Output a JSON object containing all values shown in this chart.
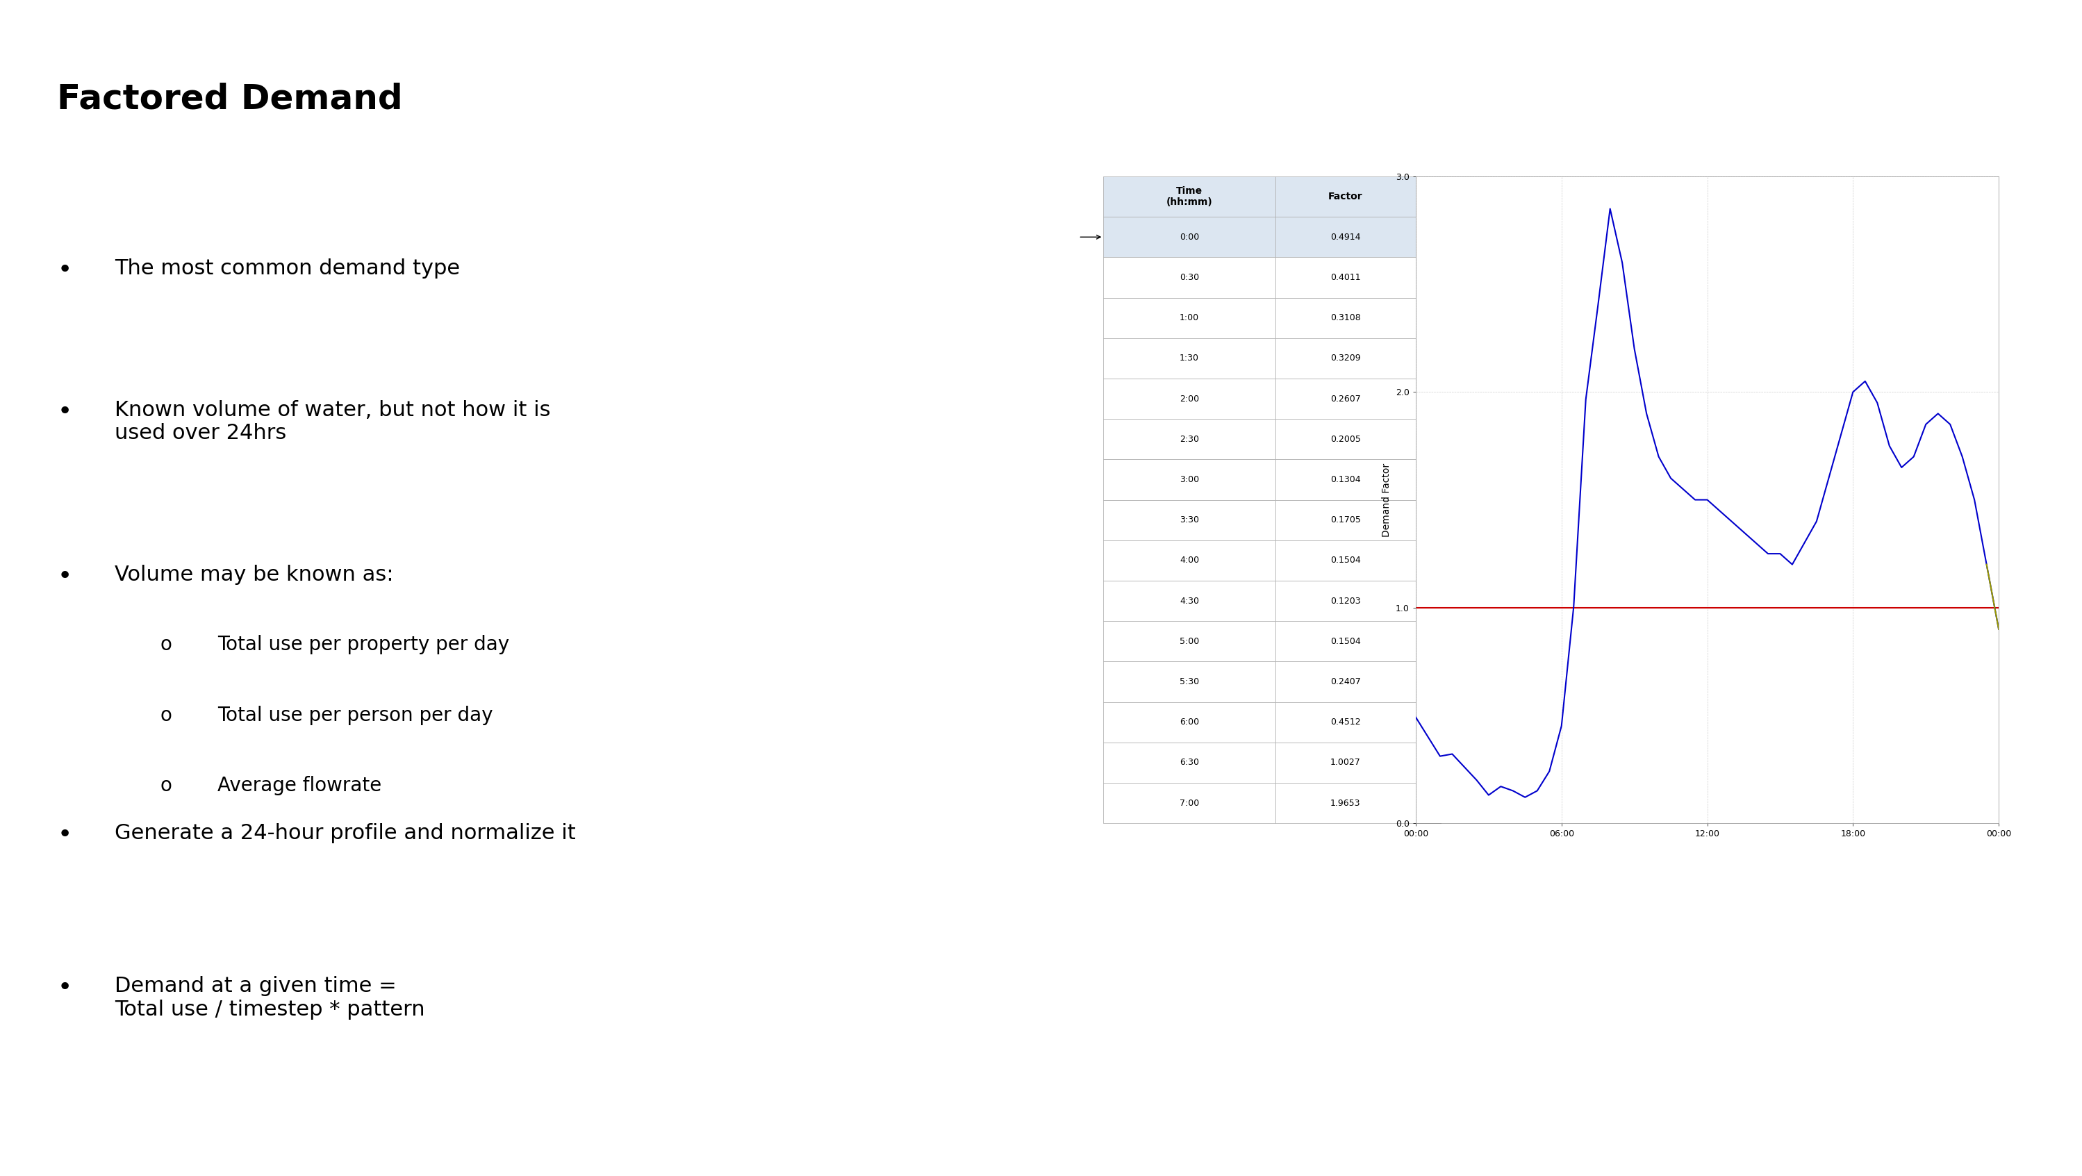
{
  "title": "Factored Demand",
  "bullets": [
    "The most common demand type",
    "Known volume of water, but not how it is\nused over 24hrs",
    "Volume may be known as:",
    "Generate a 24-hour profile and normalize it",
    "Demand at a given time =\nTotal use / timestep * pattern"
  ],
  "sub_bullets": [
    "Total use per property per day",
    "Total use per person per day",
    "Average flowrate"
  ],
  "table_headers": [
    "Time\n(hh:mm)",
    "Factor"
  ],
  "table_data": [
    [
      "0:00",
      "0.4914"
    ],
    [
      "0:30",
      "0.4011"
    ],
    [
      "1:00",
      "0.3108"
    ],
    [
      "1:30",
      "0.3209"
    ],
    [
      "2:00",
      "0.2607"
    ],
    [
      "2:30",
      "0.2005"
    ],
    [
      "3:00",
      "0.1304"
    ],
    [
      "3:30",
      "0.1705"
    ],
    [
      "4:00",
      "0.1504"
    ],
    [
      "4:30",
      "0.1203"
    ],
    [
      "5:00",
      "0.1504"
    ],
    [
      "5:30",
      "0.2407"
    ],
    [
      "6:00",
      "0.4512"
    ],
    [
      "6:30",
      "1.0027"
    ],
    [
      "7:00",
      "1.9653"
    ]
  ],
  "graph_times_hours": [
    0,
    0.5,
    1,
    1.5,
    2,
    2.5,
    3,
    3.5,
    4,
    4.5,
    5,
    5.5,
    6,
    6.5,
    7,
    7.5,
    8,
    8.5,
    9,
    9.5,
    10,
    10.5,
    11,
    11.5,
    12,
    12.5,
    13,
    13.5,
    14,
    14.5,
    15,
    15.5,
    16,
    16.5,
    17,
    17.5,
    18,
    18.5,
    19,
    19.5,
    20,
    20.5,
    21,
    21.5,
    22,
    22.5,
    23,
    23.5,
    24
  ],
  "graph_values": [
    0.4914,
    0.4011,
    0.3108,
    0.3209,
    0.2607,
    0.2005,
    0.1304,
    0.1705,
    0.1504,
    0.1203,
    0.1504,
    0.2407,
    0.4512,
    1.0027,
    1.9653,
    2.4,
    2.85,
    2.6,
    2.2,
    1.9,
    1.7,
    1.6,
    1.55,
    1.5,
    1.5,
    1.45,
    1.4,
    1.35,
    1.3,
    1.25,
    1.25,
    1.2,
    1.3,
    1.4,
    1.6,
    1.8,
    2.0,
    2.05,
    1.95,
    1.75,
    1.65,
    1.7,
    1.85,
    1.9,
    1.85,
    1.7,
    1.5,
    1.2,
    0.9
  ],
  "line_color": "#0000cc",
  "ref_line_color": "#cc0000",
  "end_line_color": "#999900",
  "ylabel": "Demand Factor",
  "ylim": [
    0.0,
    3.0
  ],
  "yticks": [
    0.0,
    1.0,
    2.0,
    3.0
  ],
  "xtick_labels": [
    "00:00",
    "06:00",
    "12:00",
    "18:00",
    "00:00"
  ],
  "background_color": "#ffffff",
  "title_fontsize": 36,
  "body_fontsize": 22,
  "sub_fontsize": 20
}
